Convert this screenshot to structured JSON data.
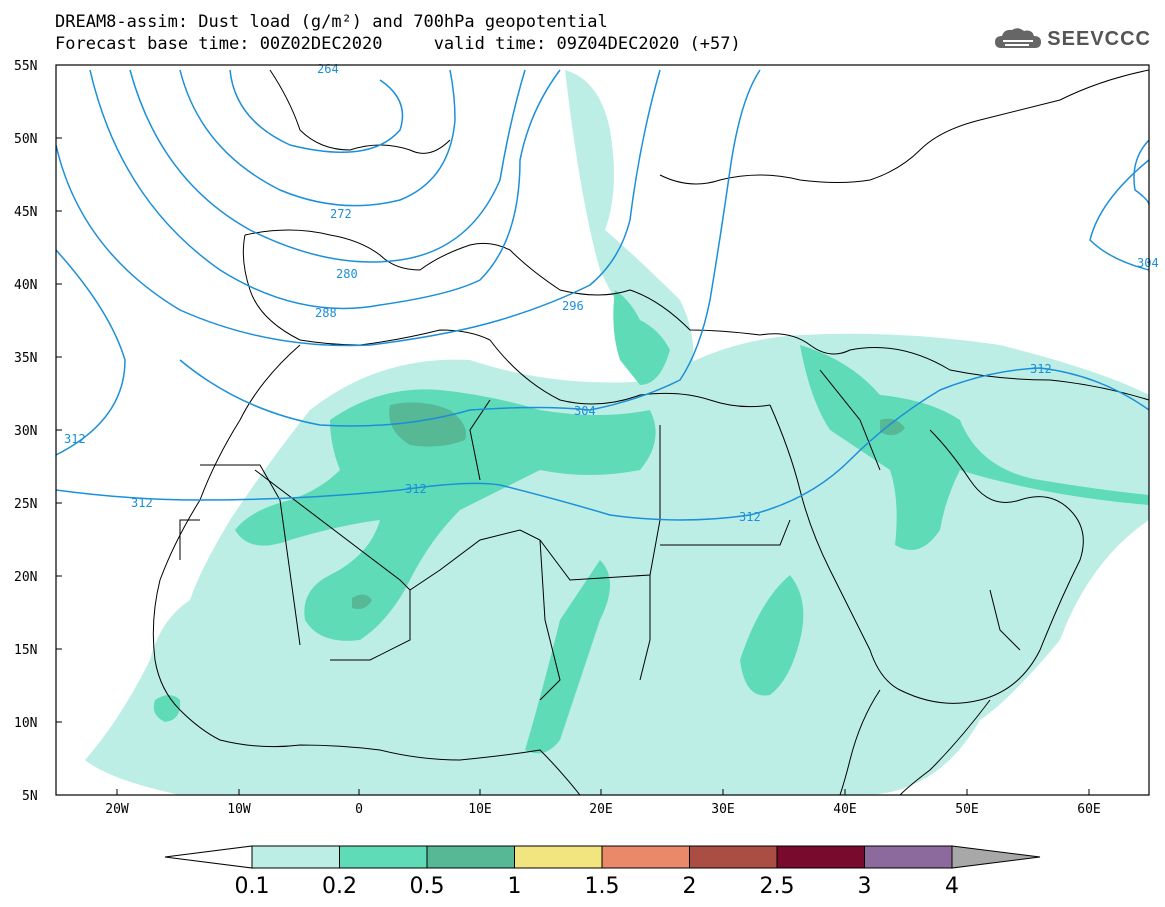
{
  "header": {
    "title_line1": "DREAM8-assim: Dust load (g/m²) and 700hPa geopotential",
    "title_line2": "Forecast base time: 00Z02DEC2020     valid time: 09Z04DEC2020 (+57)",
    "logo_text": "SEEVCCC",
    "logo_icon": "cloud-icon"
  },
  "map": {
    "lat_labels": [
      "55N",
      "50N",
      "45N",
      "40N",
      "35N",
      "30N",
      "25N",
      "20N",
      "15N",
      "10N",
      "5N"
    ],
    "lon_labels": [
      "20W",
      "10W",
      "0",
      "10E",
      "20E",
      "30E",
      "40E",
      "50E",
      "60E"
    ],
    "contour_labels": [
      "264",
      "272",
      "280",
      "288",
      "296",
      "304",
      "312",
      "312",
      "312",
      "312",
      "312",
      "304"
    ],
    "contour_color": "#1c8fd9",
    "dust_colors": [
      "#bdeee6",
      "#5fdcb7",
      "#56b895"
    ]
  },
  "colorbar": {
    "labels": [
      "0.1",
      "0.2",
      "0.5",
      "1",
      "1.5",
      "2",
      "2.5",
      "3",
      "4"
    ],
    "colors": [
      "#bdeee6",
      "#5fdcb7",
      "#56b895",
      "#f2e57f",
      "#e9896a",
      "#aa4d42",
      "#780a2d",
      "#8c6a9e"
    ],
    "under_color": "#ffffff",
    "over_color": "#a8a8a8"
  }
}
